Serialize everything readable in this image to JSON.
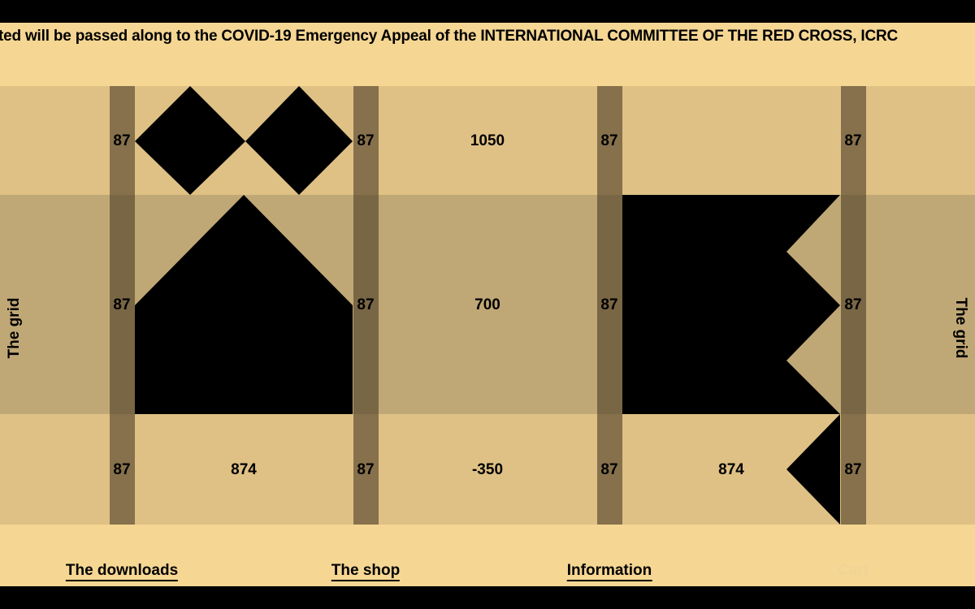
{
  "ticker": {
    "text": "ted will be passed along to the COVID-19 Emergency Appeal of the INTERNATIONAL COMMITTEE OF THE RED CROSS, ICRC"
  },
  "side_labels": {
    "left": "The grid",
    "right": "The grid"
  },
  "gutter_labels": {
    "g1_top": "87",
    "g1_mid": "87",
    "g1_bot": "87",
    "g2_top": "87",
    "g2_mid": "87",
    "g2_bot": "87",
    "g3_top": "87",
    "g3_mid": "87",
    "g3_bot": "87",
    "g4_top": "87",
    "g4_mid": "87",
    "g4_bot": "87"
  },
  "cell_labels": {
    "col2_top": "1050",
    "col2_mid": "700",
    "col2_bot": "-350",
    "col1_bot": "874",
    "col3_bot": "874"
  },
  "nav": {
    "downloads": "The downloads",
    "shop": "The shop",
    "information": "Information",
    "cart": "Cart"
  },
  "colors": {
    "page_bg": "#f5d693",
    "band_light": "#dfc185",
    "band_mid": "#c0a876",
    "gutter": "#7a6a48",
    "shape": "#000000"
  }
}
